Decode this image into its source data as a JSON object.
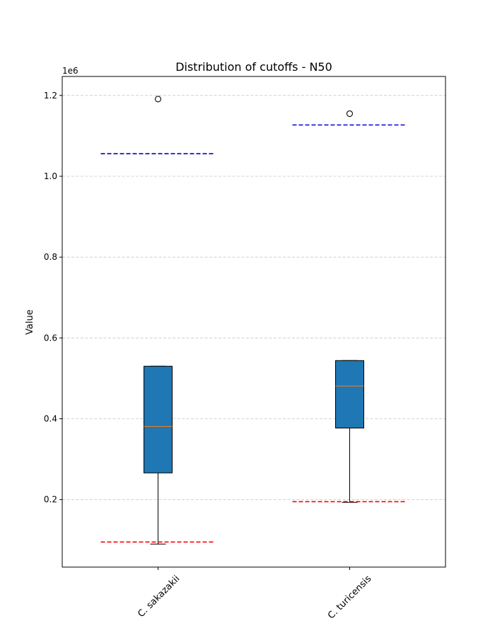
{
  "chart_data": {
    "type": "box",
    "title": "Distribution of cutoffs - N50",
    "xlabel": "",
    "ylabel": "Value",
    "y_offset_label": "1e6",
    "y_scale_factor": 1000000,
    "ylim": [
      33000,
      1247000
    ],
    "yticks": [
      200000,
      400000,
      600000,
      800000,
      1000000,
      1200000
    ],
    "ytick_labels": [
      "0.2",
      "0.4",
      "0.6",
      "0.8",
      "1.0",
      "1.2"
    ],
    "grid": "y-dashed",
    "categories": [
      "C. sakazakii",
      "C. turicensis"
    ],
    "boxes": [
      {
        "whisker_low": 90000,
        "q1": 266000,
        "median": 381000,
        "q3": 530000,
        "whisker_high": 530000,
        "outliers": [
          1191000
        ],
        "lower_cutoff": 95000,
        "upper_cutoff": 1056000
      },
      {
        "whisker_low": 193000,
        "q1": 377000,
        "median": 481000,
        "q3": 544000,
        "whisker_high": 544000,
        "outliers": [
          1155000
        ],
        "lower_cutoff": 195000,
        "upper_cutoff": 1127000
      }
    ],
    "colors": {
      "box_fill": "#1f77b4",
      "median": "#ff7f0e",
      "lower_cutoff": "#ff0000",
      "upper_cutoff": "#0000cc"
    }
  }
}
